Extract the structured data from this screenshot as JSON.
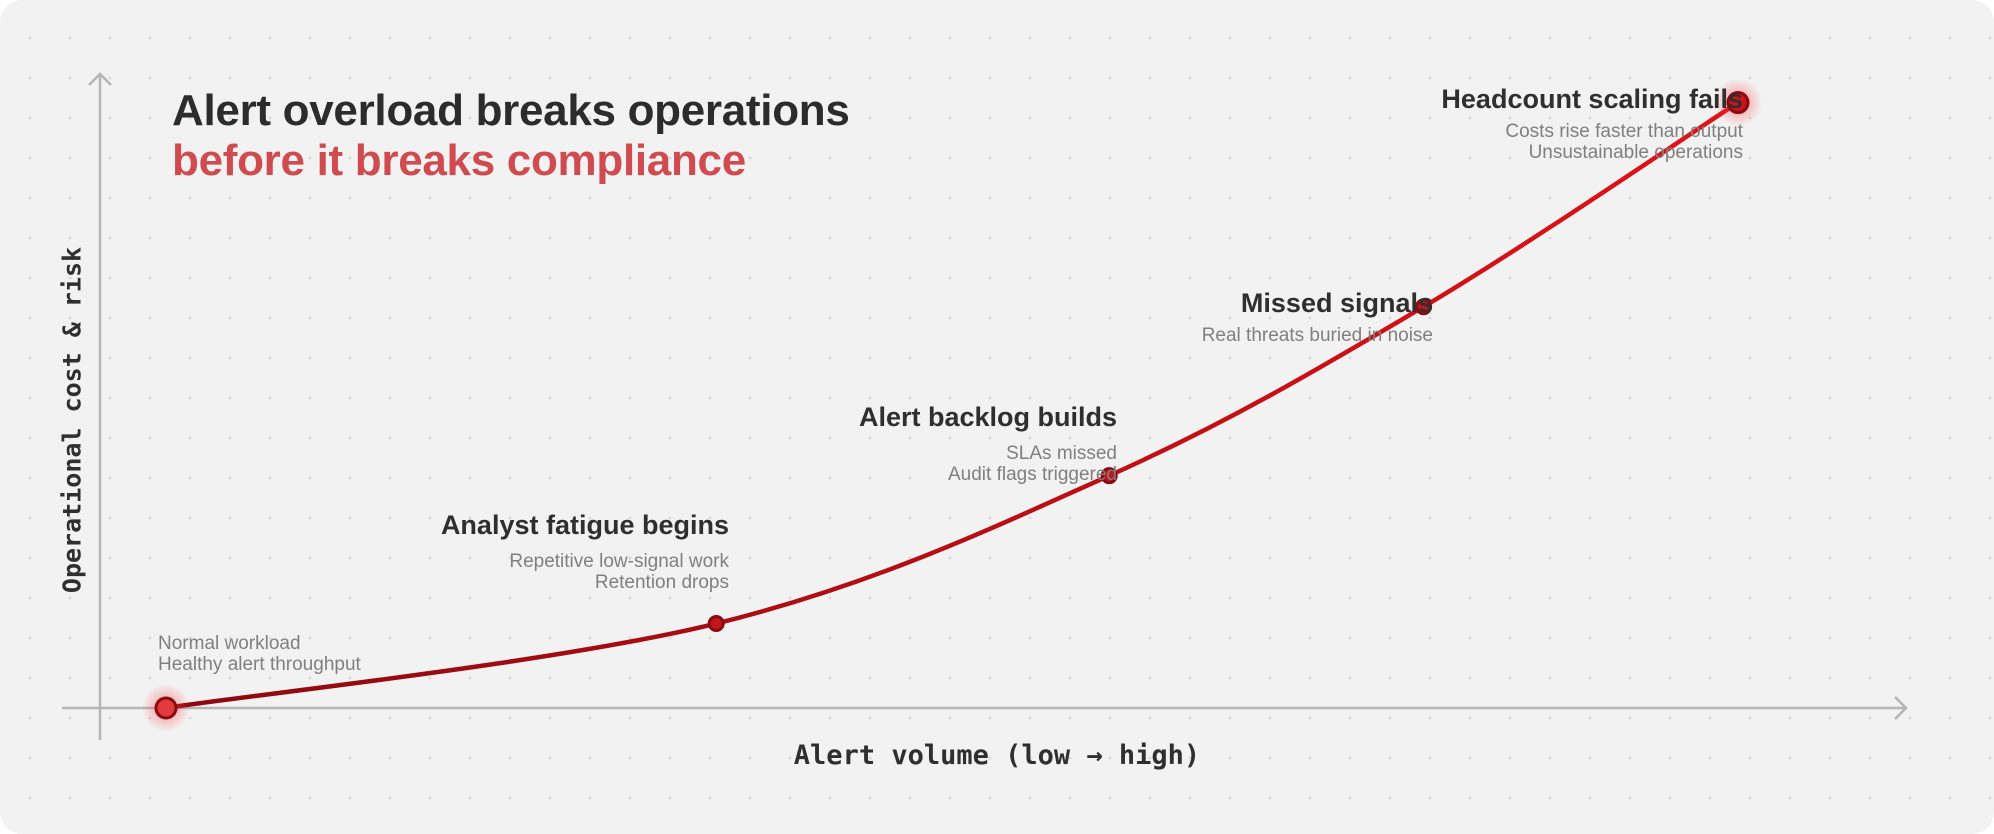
{
  "title": {
    "line1": "Alert overload breaks operations",
    "line2": "before it breaks compliance"
  },
  "colors": {
    "accent": "#cf4b4f",
    "curve_dark": "#8b0a10",
    "curve_bright": "#e01318",
    "axis": "#b5b5b5",
    "text": "#2f2f2f",
    "muted": "#808080"
  },
  "chart_data": {
    "type": "line",
    "title": "Alert overload breaks operations before it breaks compliance",
    "xlabel": "Alert volume (low → high)",
    "ylabel": "Operational cost & risk",
    "xlim": [
      0,
      100
    ],
    "ylim": [
      0,
      100
    ],
    "grid": "dotted background",
    "series": [
      {
        "x": [
          0,
          35,
          60,
          80,
          100
        ],
        "y": [
          0,
          12,
          33,
          57,
          86
        ]
      }
    ],
    "annotations": [
      {
        "id": "normal",
        "label": "",
        "lines": [
          "Normal workload",
          "Healthy alert throughput"
        ]
      },
      {
        "id": "fatigue",
        "label": "Analyst fatigue begins",
        "lines": [
          "Repetitive low-signal work",
          "Retention drops"
        ]
      },
      {
        "id": "backlog",
        "label": "Alert backlog builds",
        "lines": [
          "SLAs missed",
          "Audit flags triggered"
        ]
      },
      {
        "id": "missed",
        "label": "Missed signals",
        "lines": [
          "Real threats buried in noise"
        ]
      },
      {
        "id": "headcount",
        "label": "Headcount scaling fails",
        "lines": [
          "Costs rise faster than output",
          "Unsustainable operations"
        ]
      }
    ]
  }
}
